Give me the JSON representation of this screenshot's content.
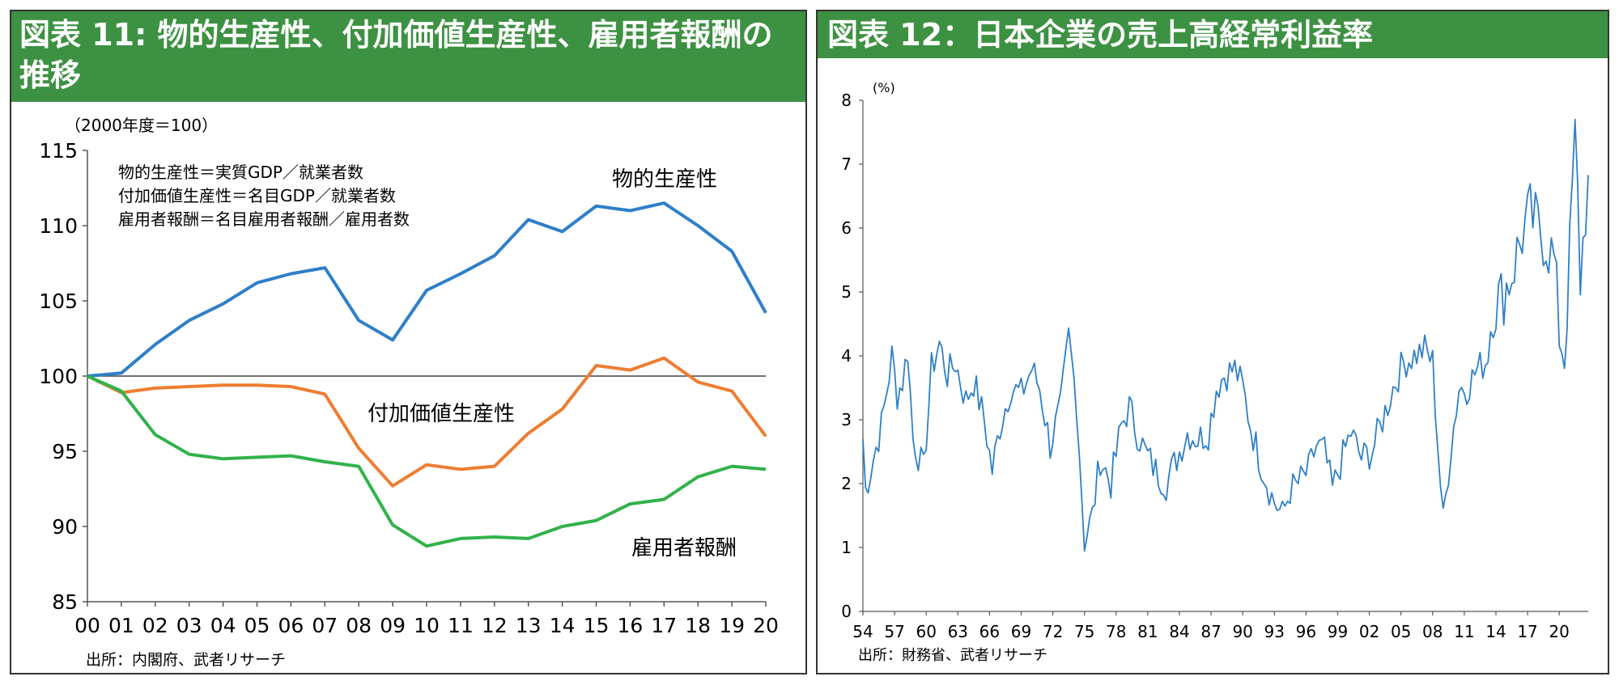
{
  "colors": {
    "header_bg": "#3d9142",
    "header_text": "#ffffff",
    "series_blue": "#2f7fc8",
    "series_orange": "#ee7d32",
    "series_green": "#31b24a",
    "line12": "#2f80c6"
  },
  "chart_data": [
    {
      "type": "line",
      "title": "図表 11: 物的生産性、付加価値生産性、雇用者報酬の推移",
      "ylabel": "（2000年度＝100）",
      "ylim": [
        85,
        115
      ],
      "yticks": [
        "115",
        "110",
        "105",
        "100",
        "95",
        "90",
        "85"
      ],
      "categories": [
        "00",
        "01",
        "02",
        "03",
        "04",
        "05",
        "06",
        "07",
        "08",
        "09",
        "10",
        "11",
        "12",
        "13",
        "14",
        "15",
        "16",
        "17",
        "18",
        "19",
        "20"
      ],
      "reference_line": 100,
      "legend_notes": [
        "物的生産性＝実質GDP／就業者数",
        "付加価値生産性＝名目GDP／就業者数",
        "雇用者報酬＝名目雇用者報酬／雇用者数"
      ],
      "series": [
        {
          "name": "物的生産性",
          "values": [
            100,
            100.2,
            102.1,
            103.7,
            104.8,
            106.2,
            106.8,
            107.2,
            103.7,
            102.4,
            105.7,
            106.8,
            108.0,
            110.4,
            109.6,
            111.3,
            111.0,
            111.5,
            110.0,
            108.3,
            104.2
          ]
        },
        {
          "name": "付加価値生産性",
          "values": [
            100,
            98.9,
            99.2,
            99.3,
            99.4,
            99.4,
            99.3,
            98.8,
            95.2,
            92.7,
            94.1,
            93.8,
            94.0,
            96.2,
            97.8,
            100.7,
            100.4,
            101.2,
            99.6,
            99.0,
            96.0
          ]
        },
        {
          "name": "雇用者報酬",
          "values": [
            100,
            99.0,
            96.1,
            94.8,
            94.5,
            94.6,
            94.7,
            94.3,
            94.0,
            90.1,
            88.7,
            89.2,
            89.3,
            89.2,
            90.0,
            90.4,
            91.5,
            91.8,
            93.3,
            94.0,
            93.8
          ]
        }
      ],
      "source": "出所：内閣府、武者リサーチ"
    },
    {
      "type": "line",
      "title": "図表 12：日本企業の売上高経常利益率",
      "ylabel": "(%)",
      "ylim": [
        0,
        8
      ],
      "yticks": [
        "8",
        "7",
        "6",
        "5",
        "4",
        "3",
        "2",
        "1",
        "0"
      ],
      "xticks": [
        "54",
        "57",
        "60",
        "63",
        "66",
        "69",
        "72",
        "75",
        "78",
        "81",
        "84",
        "87",
        "90",
        "93",
        "96",
        "99",
        "02",
        "05",
        "08",
        "11",
        "14",
        "17",
        "20"
      ],
      "x_range": [
        1954,
        2022.75
      ],
      "anchors": [
        [
          1954.0,
          2.7
        ],
        [
          1954.25,
          1.9
        ],
        [
          1955.0,
          2.4
        ],
        [
          1955.75,
          2.9
        ],
        [
          1956.75,
          4.0
        ],
        [
          1957.25,
          3.4
        ],
        [
          1957.75,
          3.6
        ],
        [
          1958.25,
          4.1
        ],
        [
          1958.75,
          2.7
        ],
        [
          1959.75,
          2.2
        ],
        [
          1960.5,
          3.8
        ],
        [
          1961.25,
          4.2
        ],
        [
          1962.0,
          3.7
        ],
        [
          1962.75,
          3.9
        ],
        [
          1963.75,
          3.3
        ],
        [
          1964.5,
          3.6
        ],
        [
          1965.5,
          3.0
        ],
        [
          1966.25,
          2.2
        ],
        [
          1967.0,
          2.9
        ],
        [
          1968.0,
          3.5
        ],
        [
          1969.0,
          3.4
        ],
        [
          1970.0,
          3.8
        ],
        [
          1970.75,
          3.5
        ],
        [
          1971.75,
          2.6
        ],
        [
          1972.75,
          3.2
        ],
        [
          1973.5,
          4.3
        ],
        [
          1974.25,
          3.3
        ],
        [
          1975.0,
          1.1
        ],
        [
          1975.75,
          1.5
        ],
        [
          1976.5,
          2.4
        ],
        [
          1977.5,
          2.0
        ],
        [
          1978.5,
          2.9
        ],
        [
          1979.25,
          3.2
        ],
        [
          1980.0,
          2.8
        ],
        [
          1980.75,
          2.5
        ],
        [
          1981.75,
          2.2
        ],
        [
          1982.75,
          2.0
        ],
        [
          1983.75,
          2.4
        ],
        [
          1984.75,
          2.8
        ],
        [
          1985.75,
          2.7
        ],
        [
          1986.75,
          2.8
        ],
        [
          1987.5,
          3.5
        ],
        [
          1988.25,
          3.7
        ],
        [
          1989.25,
          3.8
        ],
        [
          1990.0,
          3.5
        ],
        [
          1990.75,
          2.9
        ],
        [
          1991.75,
          2.3
        ],
        [
          1992.75,
          1.8
        ],
        [
          1993.75,
          1.5
        ],
        [
          1994.5,
          1.9
        ],
        [
          1995.25,
          2.0
        ],
        [
          1996.25,
          2.2
        ],
        [
          1997.0,
          2.6
        ],
        [
          1997.75,
          2.5
        ],
        [
          1998.5,
          1.9
        ],
        [
          1999.25,
          2.3
        ],
        [
          2000.25,
          2.8
        ],
        [
          2001.25,
          2.4
        ],
        [
          2002.25,
          2.5
        ],
        [
          2003.25,
          3.0
        ],
        [
          2004.25,
          3.5
        ],
        [
          2005.25,
          3.9
        ],
        [
          2006.25,
          4.0
        ],
        [
          2007.25,
          4.1
        ],
        [
          2008.0,
          3.9
        ],
        [
          2008.5,
          2.6
        ],
        [
          2009.0,
          1.4
        ],
        [
          2009.75,
          2.6
        ],
        [
          2010.5,
          3.5
        ],
        [
          2011.25,
          3.5
        ],
        [
          2012.25,
          3.8
        ],
        [
          2013.0,
          3.9
        ],
        [
          2013.75,
          4.8
        ],
        [
          2014.5,
          4.9
        ],
        [
          2015.5,
          5.3
        ],
        [
          2016.5,
          5.9
        ],
        [
          2017.25,
          6.2
        ],
        [
          2018.0,
          6.0
        ],
        [
          2018.75,
          5.8
        ],
        [
          2019.5,
          5.5
        ],
        [
          2020.0,
          4.4
        ],
        [
          2020.5,
          4.0
        ],
        [
          2021.0,
          5.6
        ],
        [
          2021.5,
          7.7
        ],
        [
          2022.0,
          5.2
        ],
        [
          2022.5,
          6.3
        ],
        [
          2022.75,
          6.6
        ]
      ],
      "source": "出所：財務省、武者リサーチ"
    }
  ]
}
